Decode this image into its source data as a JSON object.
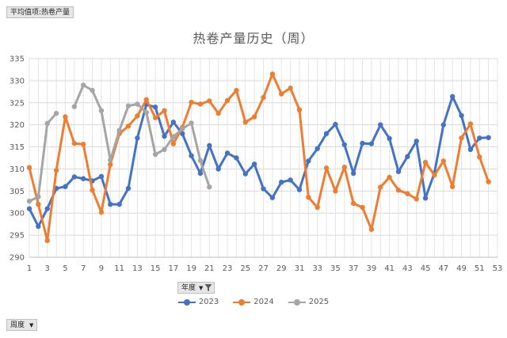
{
  "pivot": {
    "value_field": "平均值项:热卷产量",
    "series_field": "年度",
    "axis_field": "周度"
  },
  "chart_data": {
    "type": "line",
    "title": "热卷产量历史（周）",
    "xlabel": "",
    "ylabel": "",
    "ylim": [
      290,
      335
    ],
    "yticks": [
      290,
      295,
      300,
      305,
      310,
      315,
      320,
      325,
      330,
      335
    ],
    "xlim": [
      1,
      53
    ],
    "xticks": [
      1,
      3,
      5,
      7,
      9,
      11,
      13,
      15,
      17,
      19,
      21,
      23,
      25,
      27,
      29,
      31,
      33,
      35,
      37,
      39,
      41,
      43,
      45,
      47,
      49,
      51,
      53
    ],
    "grid": true,
    "legend": "bottom",
    "series": [
      {
        "name": "2023",
        "color": "#4472c4",
        "values": [
          301.0,
          297.0,
          301.0,
          305.6,
          306.0,
          308.2,
          307.8,
          307.3,
          308.3,
          302.0,
          302.0,
          305.6,
          317.0,
          324.6,
          324.0,
          317.4,
          320.6,
          318.0,
          313.0,
          309.0,
          315.3,
          310.0,
          313.6,
          312.5,
          308.9,
          311.1,
          305.5,
          303.5,
          307.0,
          307.5,
          305.3,
          311.8,
          314.6,
          318.0,
          320.1,
          315.5,
          309.0,
          315.8,
          315.7,
          320.0,
          316.9,
          309.4,
          312.8,
          316.3,
          303.4,
          309.1,
          320.0,
          326.4,
          322.1,
          314.4,
          317.0,
          317.1
        ]
      },
      {
        "name": "2024",
        "color": "#ed7d31",
        "values": [
          310.3,
          302.0,
          293.8,
          309.7,
          321.8,
          315.8,
          315.6,
          305.2,
          300.2,
          311.0,
          318.0,
          319.7,
          322.0,
          325.7,
          321.6,
          323.2,
          315.7,
          319.4,
          325.1,
          324.7,
          325.4,
          322.6,
          325.5,
          327.8,
          320.6,
          321.8,
          326.2,
          331.5,
          327.0,
          328.3,
          323.4,
          303.6,
          301.3,
          310.2,
          305.0,
          310.4,
          302.2,
          301.3,
          296.3,
          305.9,
          308.1,
          305.2,
          304.4,
          303.2,
          311.5,
          308.6,
          311.8,
          306.0,
          317.0,
          320.2,
          312.7,
          307.1
        ]
      },
      {
        "name": "2025",
        "color": "#a5a5a5",
        "values": [
          302.7,
          303.7,
          320.3,
          322.6,
          null,
          324.1,
          329.0,
          327.8,
          323.2,
          312.0,
          318.7,
          324.3,
          324.7,
          322.8,
          313.3,
          314.4,
          317.3,
          319.1,
          320.4,
          311.9,
          305.9
        ]
      }
    ]
  }
}
